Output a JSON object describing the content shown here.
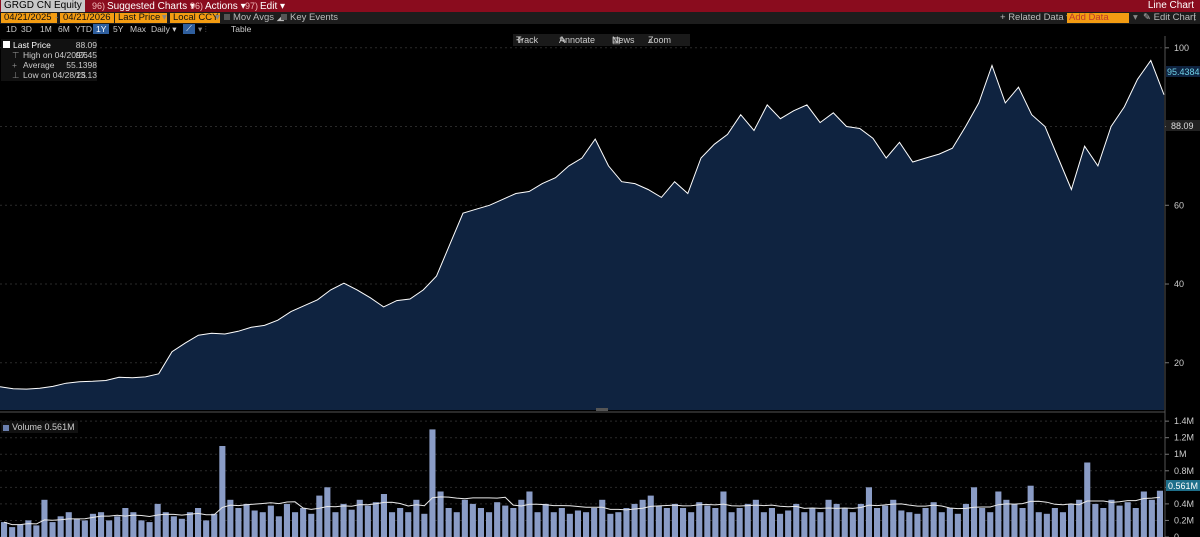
{
  "header": {
    "ticker": "GRGD CN Equity",
    "menus": [
      {
        "num": "96)",
        "label": "Suggested Charts"
      },
      {
        "num": "96)",
        "label": "Actions"
      },
      {
        "num": "97)",
        "label": "Edit"
      }
    ],
    "title": "Line Chart"
  },
  "controls": {
    "start_date": "04/21/2025",
    "end_date": "04/21/2026",
    "field": "Last Price",
    "currency": "Local CCY",
    "mov_avgs": "Mov Avgs",
    "key_events": "Key Events",
    "related_data": "Related Data",
    "add_data": "Add Data",
    "edit_chart": "Edit Chart"
  },
  "periods": [
    "1D",
    "3D",
    "1M",
    "6M",
    "YTD",
    "1Y",
    "5Y",
    "Max"
  ],
  "selected_period": "1Y",
  "frequency": "Daily",
  "table_label": "Table",
  "tools": [
    "Track",
    "Annotate",
    "News",
    "Zoom"
  ],
  "legend": {
    "last_price": {
      "label": "Last Price",
      "value": "88.09"
    },
    "high": {
      "label": "High on 04/20/26",
      "value": "97.45"
    },
    "average": {
      "label": "Average",
      "value": "55.1398"
    },
    "low": {
      "label": "Low on 04/28/25",
      "value": "13.13"
    }
  },
  "price_axis_labels": [
    "100",
    "80",
    "60",
    "40",
    "20"
  ],
  "price_tags": {
    "upper": "95.4384",
    "last": "88.09"
  },
  "volume": {
    "title": "Volume",
    "last": "0.561M",
    "axis_labels": [
      "1.4M",
      "1.2M",
      "1M",
      "0.8M",
      "0.6M",
      "0.4M",
      "0.2M",
      "0"
    ],
    "tag": "0.561M"
  },
  "chart_data": [
    {
      "type": "area",
      "series": [
        {
          "name": "Last Price",
          "values": [
            13.9,
            13.4,
            13.3,
            13.5,
            14.0,
            14.8,
            15.2,
            15.3,
            15.5,
            16.3,
            16.2,
            16.4,
            17.2,
            22.8,
            25.0,
            27.0,
            27.5,
            27.3,
            28.0,
            29.0,
            29.5,
            30.8,
            33.0,
            34.5,
            36.0,
            38.5,
            40.2,
            38.5,
            36.5,
            34.2,
            35.8,
            36.2,
            38.5,
            42.0,
            50.0,
            58.0,
            59.0,
            60.0,
            61.5,
            63.0,
            63.5,
            65.5,
            67.0,
            70.0,
            72.0,
            76.8,
            70.0,
            66.0,
            65.5,
            64.0,
            62.0,
            66.0,
            63.0,
            72.0,
            75.5,
            78.0,
            83.0,
            79.0,
            85.5,
            82.0,
            84.0,
            85.5,
            81.0,
            83.5,
            80.0,
            79.5,
            77.0,
            72.0,
            76.0,
            71.0,
            72.0,
            73.0,
            74.5,
            80.0,
            86.0,
            95.5,
            86.0,
            90.0,
            83.0,
            80.0,
            72.0,
            64.0,
            75.0,
            70.0,
            80.0,
            85.0,
            92.0,
            96.8,
            88.1
          ]
        }
      ],
      "ylim": [
        8,
        103
      ]
    },
    {
      "type": "bar",
      "series": [
        {
          "name": "Volume",
          "values": [
            0.18,
            0.12,
            0.15,
            0.2,
            0.14,
            0.45,
            0.18,
            0.25,
            0.3,
            0.22,
            0.2,
            0.28,
            0.3,
            0.2,
            0.25,
            0.35,
            0.3,
            0.2,
            0.18,
            0.4,
            0.3,
            0.25,
            0.22,
            0.3,
            0.35,
            0.2,
            0.28,
            1.1,
            0.45,
            0.35,
            0.4,
            0.32,
            0.3,
            0.38,
            0.25,
            0.4,
            0.3,
            0.35,
            0.28,
            0.5,
            0.6,
            0.3,
            0.4,
            0.33,
            0.45,
            0.38,
            0.42,
            0.52,
            0.3,
            0.35,
            0.3,
            0.45,
            0.28,
            1.3,
            0.55,
            0.35,
            0.3,
            0.45,
            0.4,
            0.35,
            0.3,
            0.42,
            0.38,
            0.35,
            0.45,
            0.55,
            0.3,
            0.4,
            0.3,
            0.35,
            0.28,
            0.32,
            0.3,
            0.35,
            0.45,
            0.28,
            0.3,
            0.35,
            0.4,
            0.45,
            0.5,
            0.38,
            0.35,
            0.4,
            0.35,
            0.3,
            0.42,
            0.38,
            0.35,
            0.55,
            0.3,
            0.35,
            0.4,
            0.45,
            0.3,
            0.35,
            0.28,
            0.32,
            0.4,
            0.3,
            0.35,
            0.3,
            0.45,
            0.4,
            0.35,
            0.3,
            0.4,
            0.6,
            0.35,
            0.38,
            0.45,
            0.32,
            0.3,
            0.28,
            0.35,
            0.42,
            0.3,
            0.35,
            0.28,
            0.4,
            0.6,
            0.35,
            0.3,
            0.55,
            0.45,
            0.4,
            0.35,
            0.62,
            0.3,
            0.28,
            0.35,
            0.3,
            0.4,
            0.45,
            0.9,
            0.4,
            0.35,
            0.45,
            0.38,
            0.42,
            0.35,
            0.55,
            0.45,
            0.56
          ]
        }
      ],
      "ylim": [
        0,
        1.45
      ]
    }
  ],
  "colors": {
    "header_bg": "#8a0c1e",
    "accent": "#f39c12",
    "area_fill": "#0f2340",
    "line": "#ffffff",
    "volume_bar": "#8a9cc6",
    "tag_bg": "#1e6f8a"
  }
}
